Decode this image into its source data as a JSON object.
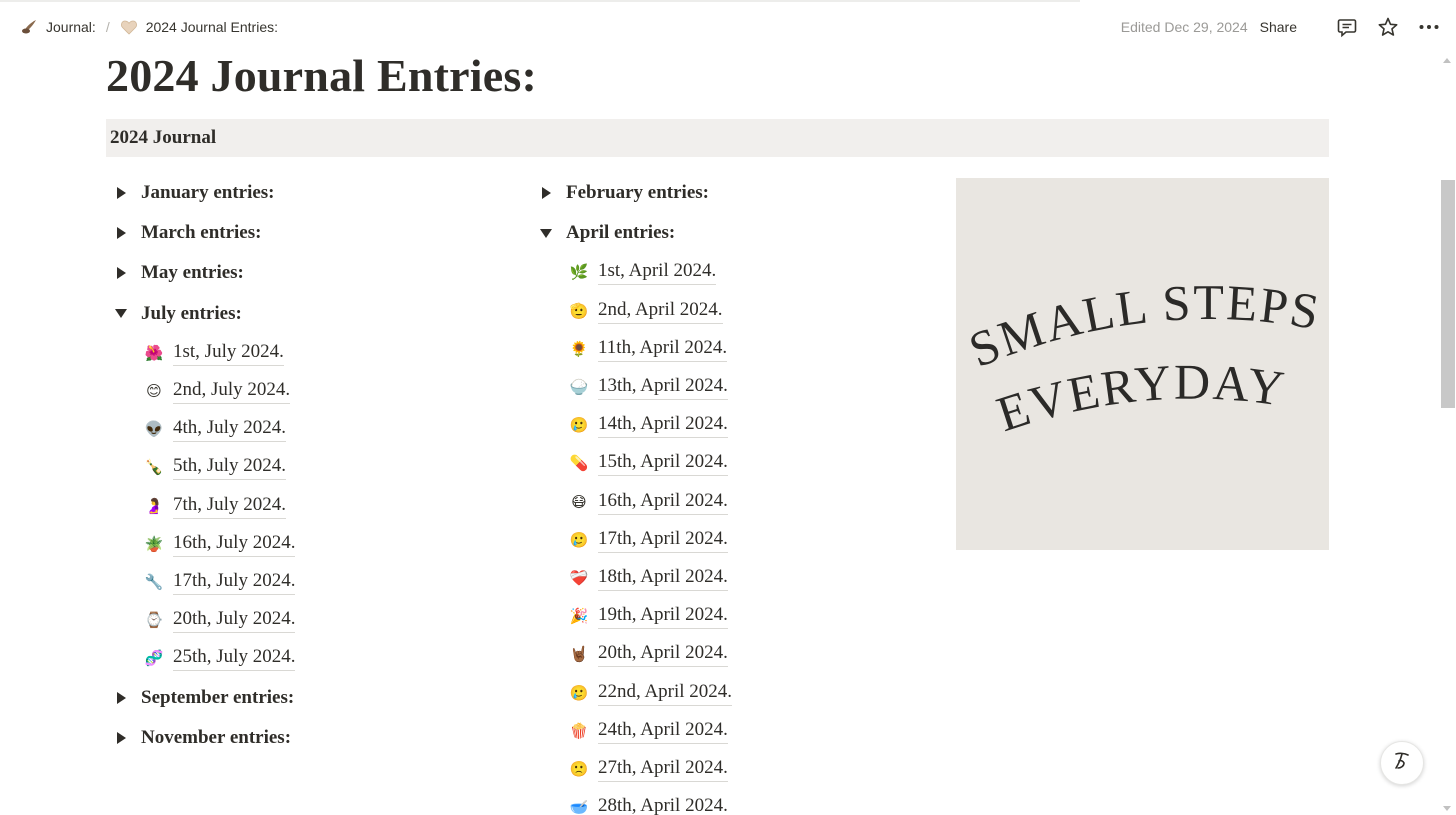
{
  "breadcrumb": {
    "items": [
      {
        "label": "Journal:",
        "icon": "quill-icon"
      },
      {
        "label": "2024 Journal Entries:",
        "icon": "heart-icon"
      }
    ],
    "separator": "/"
  },
  "header": {
    "edited": "Edited Dec 29, 2024",
    "share": "Share",
    "icons": [
      "comment-icon",
      "star-icon",
      "more-icon"
    ]
  },
  "page": {
    "title": "2024 Journal Entries:",
    "subheading": "2024 Journal"
  },
  "column_left": {
    "toggles": [
      {
        "label": "January entries:",
        "open": false,
        "entries": []
      },
      {
        "label": "March entries:",
        "open": false,
        "entries": []
      },
      {
        "label": "May entries:",
        "open": false,
        "entries": []
      },
      {
        "label": "July entries:",
        "open": true,
        "entries": [
          {
            "emoji": "🌺",
            "label": "1st, July 2024."
          },
          {
            "emoji": "😊",
            "label": "2nd, July 2024."
          },
          {
            "emoji": "👽",
            "label": "4th, July 2024."
          },
          {
            "emoji": "🍾",
            "label": "5th, July 2024."
          },
          {
            "emoji": "🤰",
            "label": "7th, July 2024."
          },
          {
            "emoji": "🪴",
            "label": "16th, July 2024."
          },
          {
            "emoji": "🔧",
            "label": "17th, July 2024."
          },
          {
            "emoji": "⌚",
            "label": "20th, July 2024."
          },
          {
            "emoji": "🧬",
            "label": "25th, July 2024."
          }
        ]
      },
      {
        "label": "September entries:",
        "open": false,
        "entries": []
      },
      {
        "label": "November entries:",
        "open": false,
        "entries": []
      }
    ]
  },
  "column_right": {
    "toggles": [
      {
        "label": "February entries:",
        "open": false,
        "entries": []
      },
      {
        "label": "April entries:",
        "open": true,
        "entries": [
          {
            "emoji": "🌿",
            "label": "1st, April 2024."
          },
          {
            "emoji": "🫡",
            "label": "2nd, April 2024."
          },
          {
            "emoji": "🌻",
            "label": "11th, April 2024."
          },
          {
            "emoji": "🍚",
            "label": "13th, April 2024."
          },
          {
            "emoji": "🥲",
            "label": "14th, April 2024."
          },
          {
            "emoji": "💊",
            "label": "15th, April 2024."
          },
          {
            "emoji": "😷",
            "label": "16th, April 2024."
          },
          {
            "emoji": "🥲",
            "label": "17th, April 2024."
          },
          {
            "emoji": "❤️‍🩹",
            "label": "18th, April 2024."
          },
          {
            "emoji": "🎉",
            "label": "19th, April 2024."
          },
          {
            "emoji": "🤘🏾",
            "label": "20th, April 2024."
          },
          {
            "emoji": "🥲",
            "label": "22nd, April 2024."
          },
          {
            "emoji": "🍿",
            "label": "24th, April 2024."
          },
          {
            "emoji": "🙁",
            "label": "27th, April 2024."
          },
          {
            "emoji": "🥣",
            "label": "28th, April 2024."
          }
        ]
      }
    ]
  },
  "image": {
    "line1": "SMALL STEPS",
    "line2": "EVERYDAY",
    "background": "#e9e6e1"
  },
  "colors": {
    "text": "#2f2d29",
    "muted": "#9b9a97",
    "subhead_bg": "#f1efed"
  }
}
